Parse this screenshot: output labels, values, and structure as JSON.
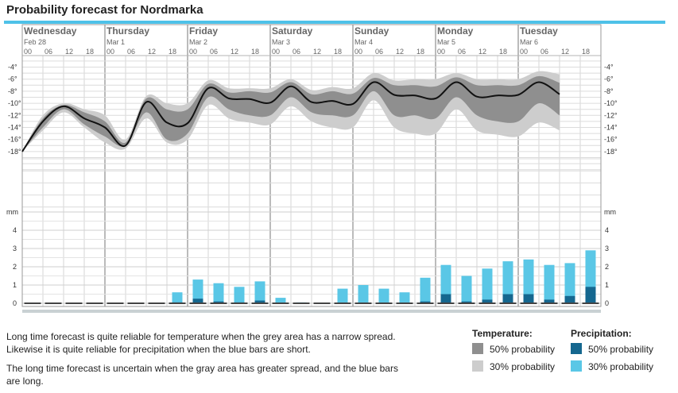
{
  "header": {
    "title": "Probability forecast for Nordmarka"
  },
  "chart_data": {
    "type": "area",
    "days": [
      {
        "name": "Wednesday",
        "date": "Feb 28"
      },
      {
        "name": "Thursday",
        "date": "Mar 1"
      },
      {
        "name": "Friday",
        "date": "Mar 2"
      },
      {
        "name": "Saturday",
        "date": "Mar 3"
      },
      {
        "name": "Sunday",
        "date": "Mar 4"
      },
      {
        "name": "Monday",
        "date": "Mar 5"
      },
      {
        "name": "Tuesday",
        "date": "Mar 6"
      }
    ],
    "hour_labels": [
      "00",
      "06",
      "12",
      "18"
    ],
    "temperature": {
      "unit": "°C",
      "ylim": [
        -19,
        -3
      ],
      "ticks": [
        "-4°",
        "-6°",
        "-8°",
        "-10°",
        "-12°",
        "-14°",
        "-16°",
        "-18°"
      ],
      "time_hours": [
        0,
        6,
        12,
        18,
        24,
        30,
        36,
        42,
        48,
        54,
        60,
        66,
        72,
        78,
        84,
        90,
        96,
        102,
        108,
        114,
        120,
        126,
        132,
        138,
        144,
        150,
        156,
        162,
        168
      ],
      "median": [
        -18,
        -13,
        -10.5,
        -12.5,
        -14,
        -17,
        -9.8,
        -13.2,
        -13.3,
        -7.5,
        -9.2,
        -9.3,
        -9.9,
        -7.2,
        -9.8,
        -9.6,
        -10.1,
        -6.5,
        -8.6,
        -8.7,
        -9.2,
        -6.5,
        -8.9,
        -8.7,
        -8.6,
        -6.5,
        -8.5,
        null,
        null
      ],
      "p50_low": [
        -18,
        -14,
        -11,
        -13.5,
        -15.5,
        -17,
        -11.5,
        -16,
        -15,
        -9,
        -11,
        -12,
        -12,
        -9,
        -11.5,
        -12,
        -12,
        -8,
        -12,
        -12,
        -12.5,
        -9,
        -12,
        -13,
        -13,
        -10,
        -12,
        null,
        null
      ],
      "p50_high": [
        -18,
        -12.5,
        -10.3,
        -11.5,
        -13,
        -16.5,
        -9.2,
        -11,
        -11,
        -6.8,
        -8.2,
        -8,
        -8.2,
        -6.5,
        -8.5,
        -8,
        -8.4,
        -5.8,
        -7,
        -7,
        -7.2,
        -5.7,
        -7,
        -7,
        -7,
        -5.5,
        -6.6,
        null,
        null
      ],
      "p30_low": [
        -18,
        -14.5,
        -11.5,
        -14,
        -16.5,
        -17.5,
        -12.5,
        -16.5,
        -16,
        -10.3,
        -12.5,
        -13.2,
        -13.5,
        -10.5,
        -13,
        -14,
        -14,
        -9.5,
        -14,
        -15,
        -15,
        -11,
        -14.5,
        -15.2,
        -15.5,
        -13.2,
        -14.5,
        null,
        null
      ],
      "p30_high": [
        -18,
        -12,
        -10,
        -11,
        -12,
        -16,
        -8.8,
        -10,
        -10,
        -6.2,
        -7.5,
        -7.5,
        -7.5,
        -6,
        -7.8,
        -7.3,
        -7.5,
        -5,
        -6.2,
        -6,
        -6,
        -5,
        -6,
        -6,
        -6,
        -4.7,
        -5.2,
        null,
        null
      ]
    },
    "precipitation": {
      "unit": "mm",
      "ylim": [
        0,
        4
      ],
      "ticks": [
        "4",
        "3",
        "2",
        "1",
        "0"
      ],
      "bars_30": [
        0,
        0,
        0,
        0,
        0,
        0,
        0,
        0.6,
        1.3,
        1.1,
        0.9,
        1.2,
        0.3,
        0.05,
        0,
        0.8,
        1.0,
        0.8,
        0.6,
        1.4,
        2.1,
        1.5,
        1.9,
        2.3,
        2.4,
        2.1,
        2.2,
        2.9
      ],
      "bars_50": [
        0,
        0,
        0,
        0,
        0,
        0,
        0,
        0.05,
        0.25,
        0.1,
        0.05,
        0.15,
        0,
        0,
        0,
        0,
        0,
        0,
        0,
        0.1,
        0.5,
        0.1,
        0.2,
        0.5,
        0.5,
        0.2,
        0.4,
        0.9
      ]
    }
  },
  "explanation": {
    "para1": "Long time forecast is quite reliable for temperature when the grey area has a narrow spread. Likewise it is quite reliable for precipitation when the blue bars are short.",
    "para2": "The long time forecast is uncertain when the gray area has greater spread, and the blue bars are long."
  },
  "legend": {
    "temperature_title": "Temperature:",
    "precipitation_title": "Precipitation:",
    "temp_50": "50% probability",
    "temp_30": "30% probability",
    "precip_50": "50% probability",
    "precip_30": "30% probability",
    "colors": {
      "temp_50": "#8f8f8f",
      "temp_30": "#cdcdcd",
      "precip_50": "#15678f",
      "precip_30": "#5ac7e6"
    }
  }
}
